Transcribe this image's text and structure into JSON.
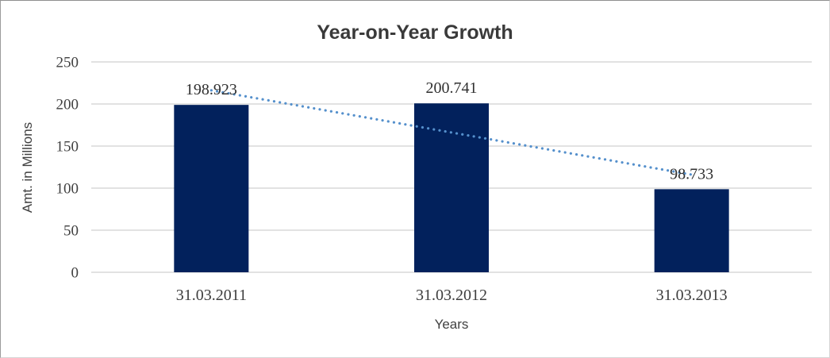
{
  "chart": {
    "title": "Year-on-Year Growth",
    "y_axis_title": "Amt. in Millions",
    "x_axis_title": "Years"
  },
  "chart_data": {
    "type": "bar",
    "title": "Year-on-Year Growth",
    "xlabel": "Years",
    "ylabel": "Amt. in Millions",
    "categories": [
      "31.03.2011",
      "31.03.2012",
      "31.03.2013"
    ],
    "values": [
      198.923,
      200.741,
      98.733
    ],
    "value_labels": [
      "198.923",
      "200.741",
      "98.733"
    ],
    "ylim": [
      0,
      250
    ],
    "yticks": [
      0,
      50,
      100,
      150,
      200,
      250
    ],
    "grid": true,
    "legend": "none",
    "colors": {
      "bar": "#02215C",
      "gridline": "#D9D9D9",
      "trendline": "#5590CC",
      "text": "#404040",
      "title": "#3A3A3A"
    },
    "trendline": {
      "type": "linear",
      "style": "dotted",
      "color": "#5590CC",
      "start_value": 216.2,
      "end_value": 116.0
    }
  }
}
